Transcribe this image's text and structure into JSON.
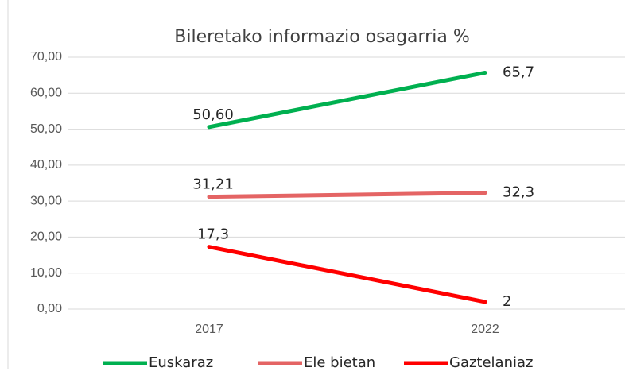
{
  "chart_data": {
    "type": "line",
    "title": "Bileretako informazio osagarria %",
    "categories": [
      "2017",
      "2022"
    ],
    "series": [
      {
        "name": "Euskaraz",
        "color": "#00b050",
        "values": [
          50.6,
          65.7
        ],
        "value_labels": [
          "50,60",
          "65,7"
        ]
      },
      {
        "name": "Ele bietan",
        "color": "#e46464",
        "values": [
          31.21,
          32.3
        ],
        "value_labels": [
          "31,21",
          "32,3"
        ]
      },
      {
        "name": "Gaztelaniaz",
        "color": "#ff0000",
        "values": [
          17.3,
          2
        ],
        "value_labels": [
          "17,3",
          "2"
        ]
      }
    ],
    "ylim": [
      0,
      70
    ],
    "yticks": [
      {
        "value": 0,
        "label": "0,00"
      },
      {
        "value": 10,
        "label": "10,00"
      },
      {
        "value": 20,
        "label": "20,00"
      },
      {
        "value": 30,
        "label": "30,00"
      },
      {
        "value": 40,
        "label": "40,00"
      },
      {
        "value": 50,
        "label": "50,00"
      },
      {
        "value": 60,
        "label": "60,00"
      },
      {
        "value": 70,
        "label": "70,00"
      }
    ],
    "grid": true,
    "legend": "bottom"
  }
}
